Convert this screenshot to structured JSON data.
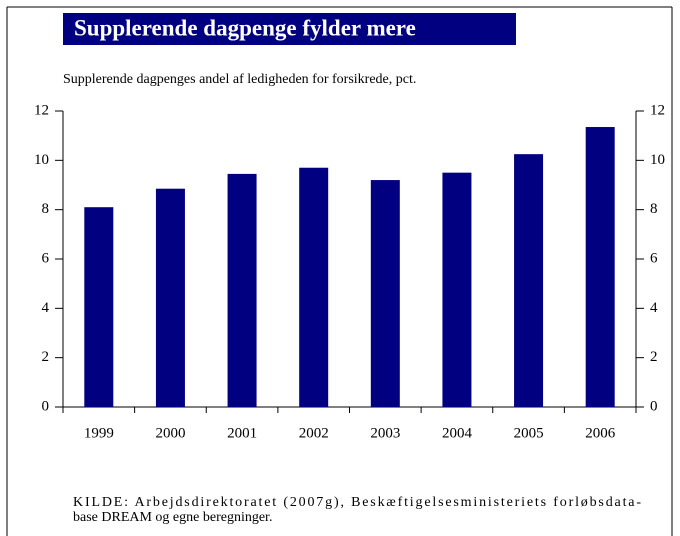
{
  "chart_data": {
    "type": "bar",
    "title": "Supplerende dagpenge fylder mere",
    "subtitle": "Supplerende dagpenges andel af ledigheden for forsikrede, pct.",
    "categories": [
      "1999",
      "2000",
      "2001",
      "2002",
      "2003",
      "2004",
      "2005",
      "2006"
    ],
    "values": [
      8.1,
      8.85,
      9.45,
      9.7,
      9.2,
      9.5,
      10.25,
      11.35
    ],
    "color": "#000080",
    "ylim": [
      0,
      12
    ],
    "yticks": [
      0,
      2,
      4,
      6,
      8,
      10,
      12
    ],
    "y2lim": [
      0,
      12
    ],
    "y2ticks": [
      0,
      2,
      4,
      6,
      8,
      10,
      12
    ],
    "grid": false,
    "source": [
      "KILDE: Arbejdsdirektoratet (2007g), Beskæftigelsesministeriets forløbsdata-",
      "base DREAM og egne beregninger."
    ]
  }
}
